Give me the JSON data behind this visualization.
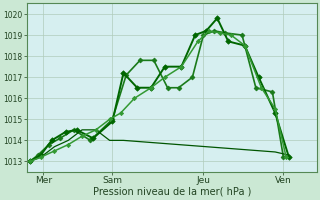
{
  "bg_color": "#cbe8d4",
  "plot_bg_color": "#d6eff0",
  "grid_color": "#b0ccbb",
  "xlabel": "Pression niveau de la mer( hPa )",
  "ylim": [
    1012.5,
    1020.5
  ],
  "yticks": [
    1013,
    1014,
    1015,
    1016,
    1017,
    1018,
    1019,
    1020
  ],
  "xlim": [
    0,
    10.5
  ],
  "xtick_labels": [
    "Mer",
    "Sam",
    "Jeu",
    "Ven"
  ],
  "xtick_positions": [
    0.6,
    3.1,
    6.4,
    9.3
  ],
  "series": [
    {
      "x": [
        0.1,
        0.4,
        0.8,
        1.2,
        1.7,
        2.3,
        3.1,
        3.6,
        4.1,
        4.6,
        5.1,
        5.5,
        6.0,
        6.4,
        6.8,
        7.2,
        7.8,
        8.3,
        8.9,
        9.3
      ],
      "y": [
        1013.0,
        1013.3,
        1013.8,
        1014.1,
        1014.5,
        1014.0,
        1015.0,
        1017.1,
        1017.8,
        1017.8,
        1016.5,
        1016.5,
        1017.0,
        1019.0,
        1019.2,
        1019.1,
        1019.0,
        1016.5,
        1016.3,
        1013.2
      ],
      "color": "#1a7a1a",
      "lw": 1.2,
      "marker": "D",
      "ms": 2.5,
      "ls": "-"
    },
    {
      "x": [
        0.1,
        0.5,
        0.9,
        1.4,
        1.8,
        2.4,
        3.1,
        3.5,
        4.0,
        4.5,
        5.0,
        5.6,
        6.1,
        6.5,
        6.9,
        7.3,
        7.9,
        8.4,
        9.0,
        9.5
      ],
      "y": [
        1013.0,
        1013.3,
        1014.0,
        1014.4,
        1014.5,
        1014.1,
        1014.9,
        1017.2,
        1016.5,
        1016.5,
        1017.5,
        1017.5,
        1019.0,
        1019.2,
        1019.8,
        1018.7,
        1018.5,
        1017.0,
        1015.3,
        1013.2
      ],
      "color": "#006600",
      "lw": 1.4,
      "marker": "D",
      "ms": 2.8,
      "ls": "-"
    },
    {
      "x": [
        0.1,
        0.5,
        1.0,
        1.5,
        2.0,
        2.5,
        3.0,
        3.5,
        4.0,
        4.5,
        5.0,
        5.5,
        6.0,
        6.5,
        7.0,
        7.5,
        8.0,
        8.5,
        9.0,
        9.5
      ],
      "y": [
        1013.0,
        1013.2,
        1013.7,
        1014.0,
        1014.5,
        1014.5,
        1014.0,
        1014.0,
        1013.95,
        1013.9,
        1013.85,
        1013.8,
        1013.75,
        1013.7,
        1013.65,
        1013.6,
        1013.55,
        1013.5,
        1013.45,
        1013.3
      ],
      "color": "#005500",
      "lw": 0.9,
      "marker": "None",
      "ms": 0,
      "ls": "-"
    },
    {
      "x": [
        0.1,
        0.5,
        1.0,
        1.5,
        2.0,
        2.5,
        3.0,
        3.4,
        3.9,
        4.5,
        5.0,
        5.6,
        6.2,
        6.6,
        7.0,
        7.4,
        7.9,
        8.5,
        9.0,
        9.4
      ],
      "y": [
        1013.0,
        1013.2,
        1013.5,
        1013.8,
        1014.2,
        1014.5,
        1015.0,
        1015.3,
        1016.0,
        1016.5,
        1017.0,
        1017.5,
        1018.7,
        1019.2,
        1019.1,
        1019.0,
        1018.5,
        1016.5,
        1015.5,
        1013.2
      ],
      "color": "#339933",
      "lw": 1.1,
      "marker": "D",
      "ms": 2.2,
      "ls": "-"
    }
  ]
}
